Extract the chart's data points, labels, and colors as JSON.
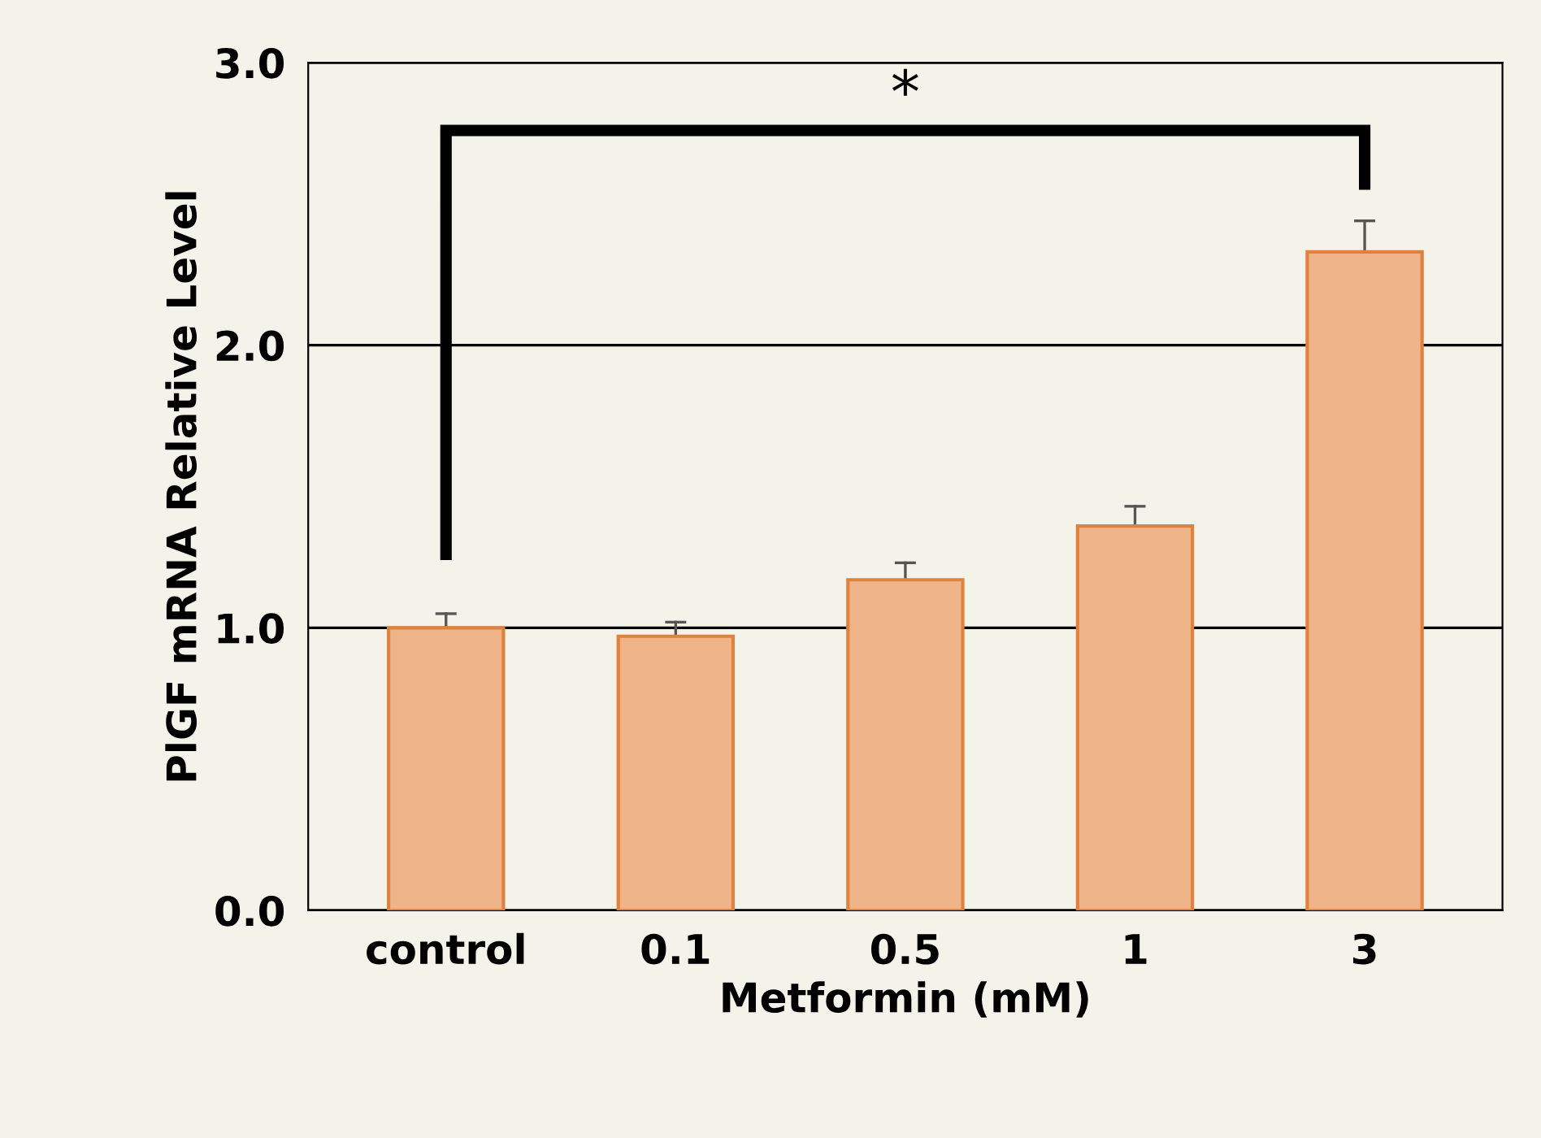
{
  "chart_data": {
    "type": "bar",
    "categories": [
      "control",
      "0.1",
      "0.5",
      "1",
      "3"
    ],
    "values": [
      1.0,
      0.97,
      1.17,
      1.36,
      2.33
    ],
    "errors": [
      [
        1.0,
        1.05
      ],
      [
        0.97,
        1.02
      ],
      [
        1.17,
        1.23
      ],
      [
        1.36,
        1.43
      ],
      [
        2.33,
        2.44
      ]
    ],
    "color": "#efb48a",
    "xlabel": "Metformin (mM)",
    "ylabel": "PlGF mRNA Relative Level",
    "ylim": [
      0,
      3.0
    ],
    "yticks": [
      {
        "value": 0,
        "label": "0.0"
      },
      {
        "value": 1,
        "label": "1.0"
      },
      {
        "value": 2,
        "label": "2.0"
      },
      {
        "value": 3,
        "label": "3.0"
      }
    ],
    "grid": "y",
    "annotations": [
      "*"
    ]
  }
}
